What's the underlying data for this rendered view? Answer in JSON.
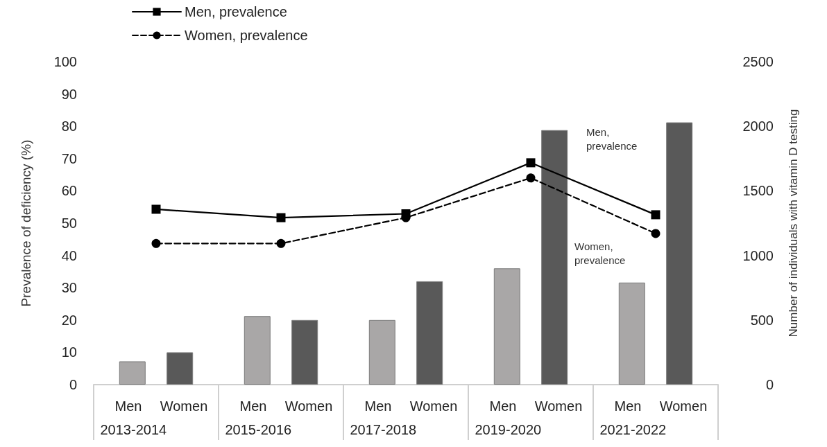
{
  "chart_data": {
    "type": "bar",
    "categories": [
      "2013-2014",
      "2015-2016",
      "2017-2018",
      "2019-2020",
      "2021-2022"
    ],
    "ylabel": "Prevalence of deficiency (%)",
    "y2label": "Number of individuals with vitamin D testing",
    "ylim": [
      0,
      100
    ],
    "yticks": [
      0,
      10,
      20,
      30,
      40,
      50,
      60,
      70,
      80,
      90,
      100
    ],
    "y2lim": [
      0,
      2500
    ],
    "y2ticks": [
      0,
      500,
      1000,
      1500,
      2000,
      2500
    ],
    "series": [
      {
        "name": "Men",
        "axis": "y2",
        "color": "#a9a7a7",
        "values": [
          180,
          530,
          500,
          900,
          790
        ]
      },
      {
        "name": "Women",
        "axis": "y2",
        "color": "#595959",
        "values": [
          250,
          500,
          800,
          1970,
          2030
        ]
      },
      {
        "name": "Men, prevalence",
        "type": "line",
        "color": "#000000",
        "marker": "square",
        "line_style": "solid",
        "values": [
          54.3,
          51.7,
          52.9,
          68.7,
          52.6
        ]
      },
      {
        "name": "Women, prevalence",
        "type": "line",
        "color": "#000000",
        "marker": "circle",
        "line_style": "dashed",
        "values": [
          43.7,
          43.7,
          51.7,
          64,
          46.8
        ]
      }
    ],
    "annotations": [
      "Men,\nprevalence",
      "Women,\nprevalence"
    ],
    "legend": "top left",
    "grid": false
  }
}
